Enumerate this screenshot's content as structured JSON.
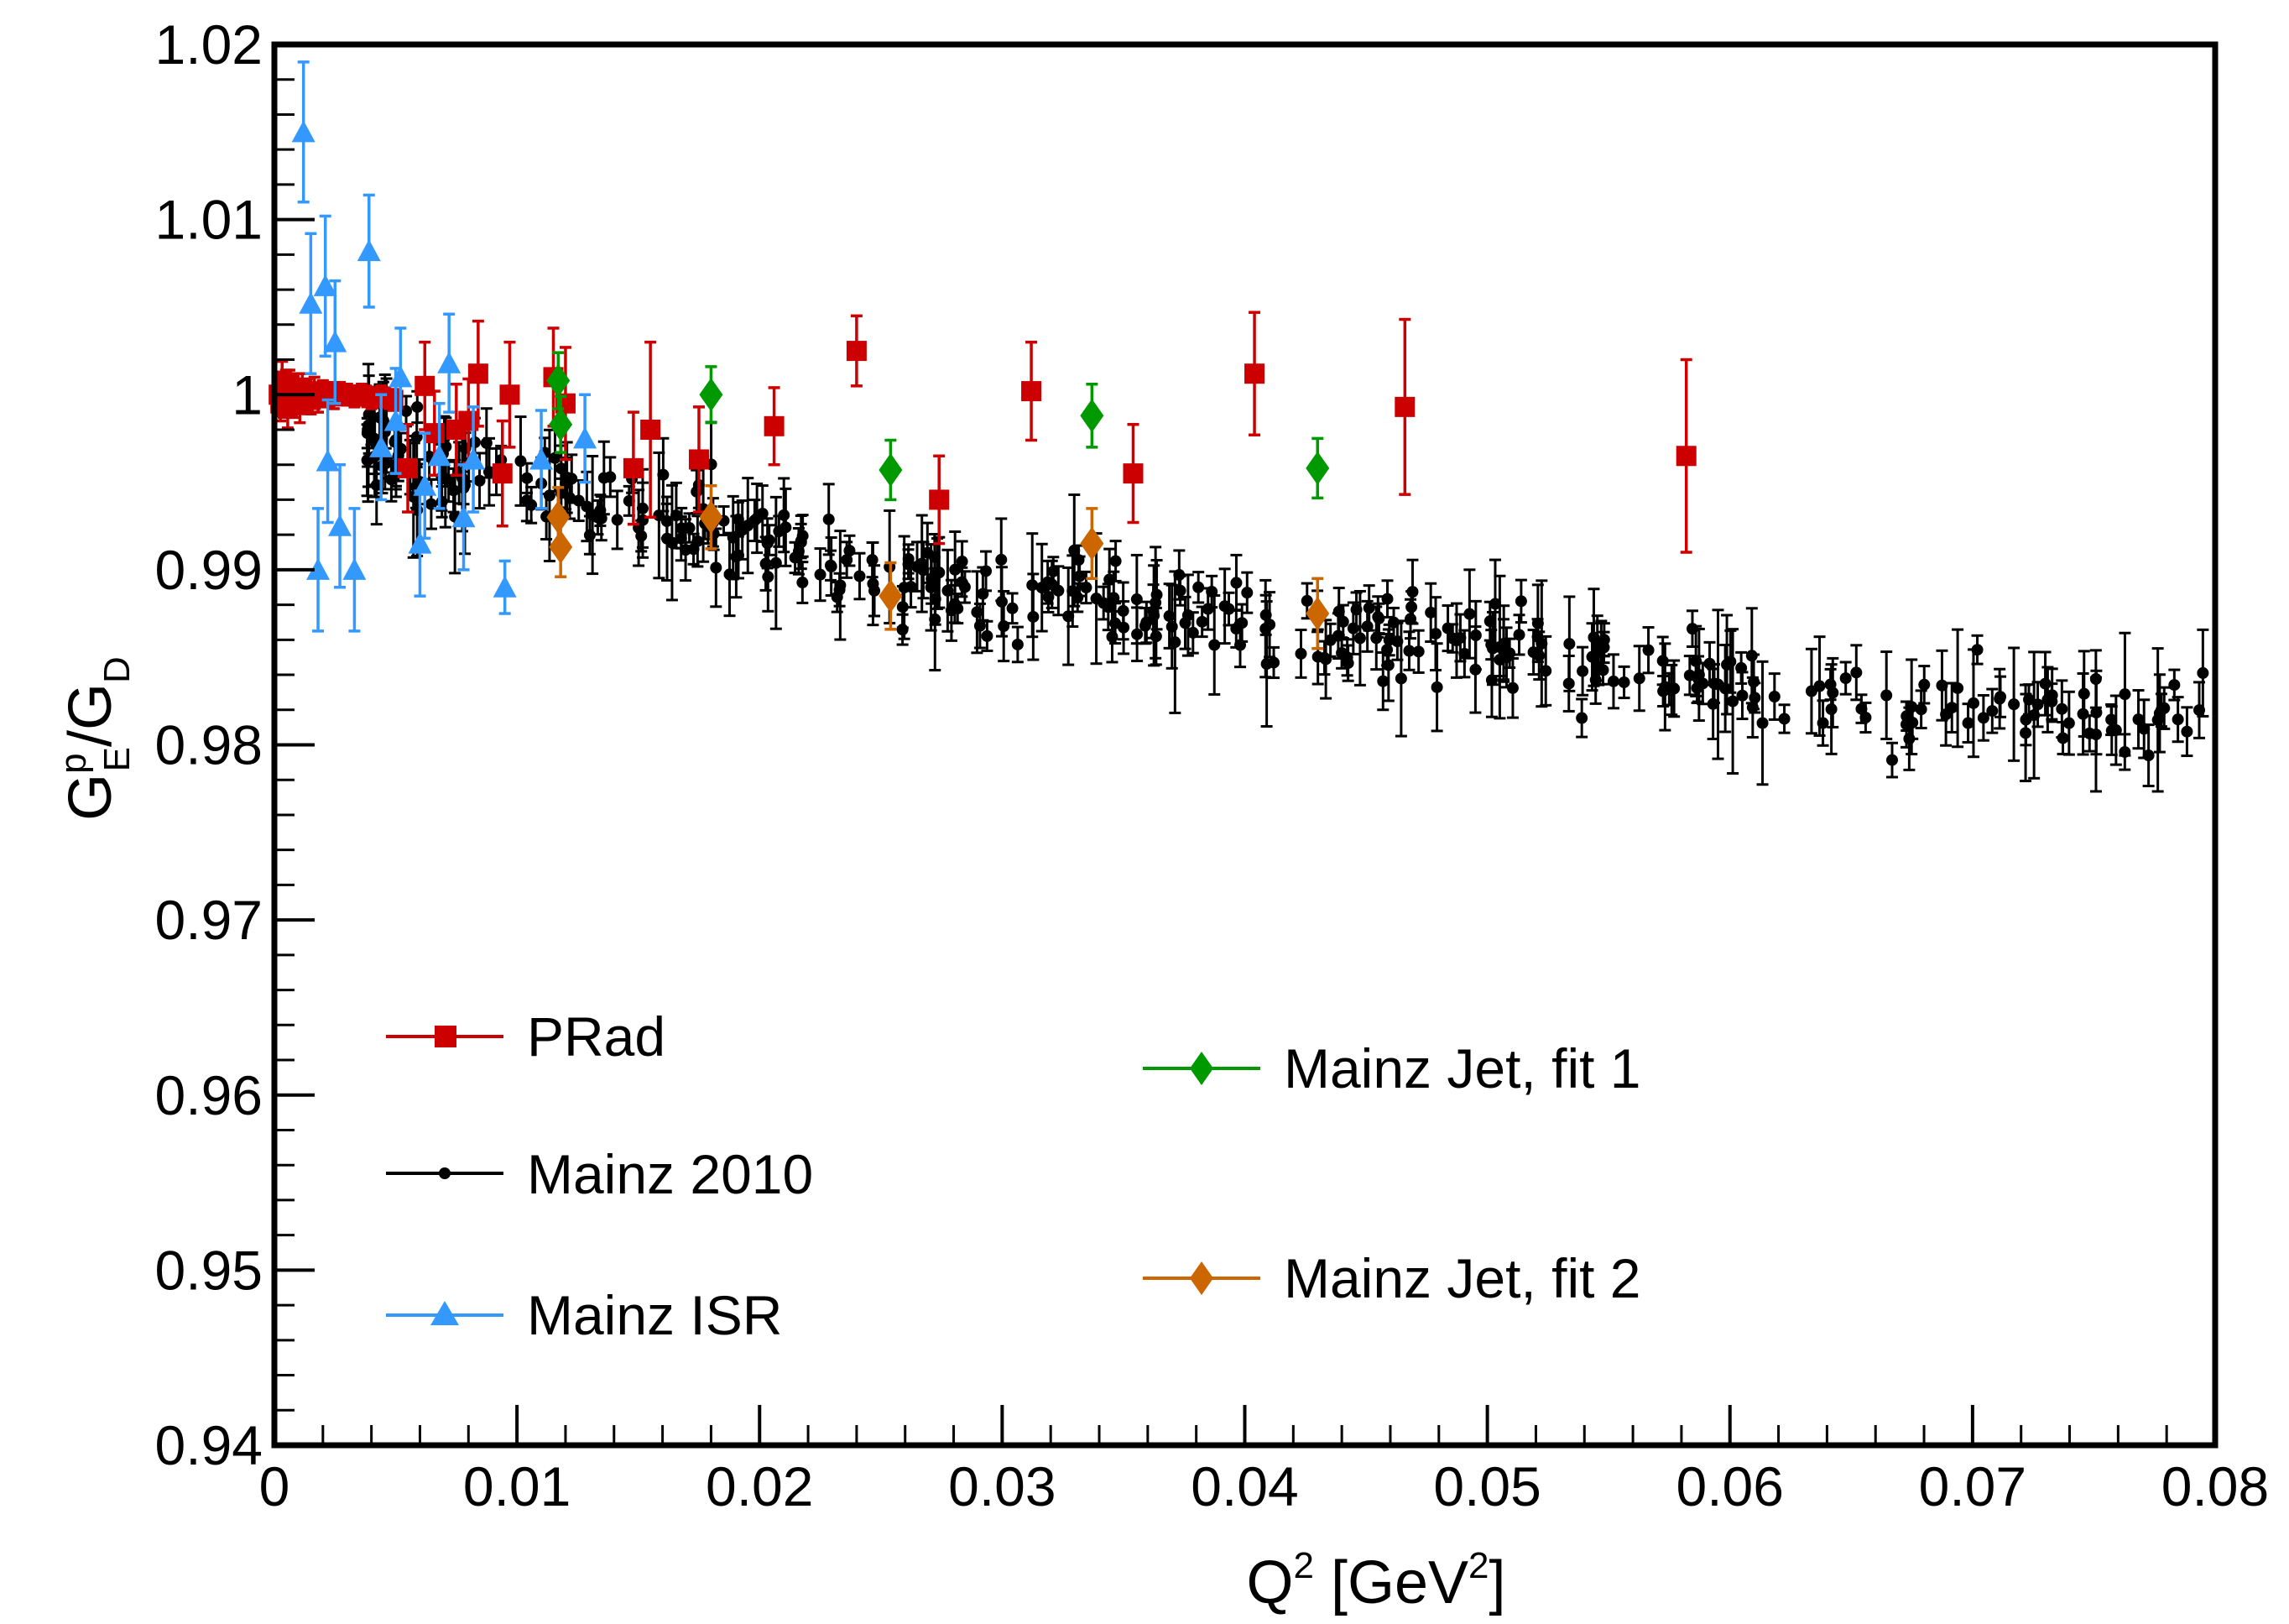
{
  "chart_data": {
    "type": "scatter",
    "title": "",
    "xlabel": "Q² [GeV²]",
    "ylabel": "G_E^p/G_D",
    "xlim": [
      0,
      0.08
    ],
    "ylim": [
      0.94,
      1.02
    ],
    "xticks": [
      "0",
      "0.01",
      "0.02",
      "0.03",
      "0.04",
      "0.05",
      "0.06",
      "0.07",
      "0.08"
    ],
    "yticks": [
      "0.94",
      "0.95",
      "0.96",
      "0.97",
      "0.98",
      "0.99",
      "1",
      "1.01",
      "1.02"
    ],
    "xlabel_parts": {
      "base": "Q",
      "sup1": "2",
      "mid": " [GeV",
      "sup2": "2",
      "end": "]"
    },
    "ylabel_parts": {
      "base": "G",
      "sup": "p",
      "sub": "E",
      "slash": "/G",
      "sub2": "D"
    },
    "legend": [
      {
        "name": "PRad",
        "color": "#cc0000",
        "marker": "square"
      },
      {
        "name": "Mainz 2010",
        "color": "#000000",
        "marker": "dot"
      },
      {
        "name": "Mainz ISR",
        "color": "#3399ff",
        "marker": "triangle"
      },
      {
        "name": "Mainz Jet, fit 1",
        "color": "#009900",
        "marker": "diamond"
      },
      {
        "name": "Mainz Jet, fit 2",
        "color": "#cc6600",
        "marker": "diamond"
      }
    ],
    "series": [
      {
        "name": "PRad",
        "color": "#cc0000",
        "marker": "square",
        "points": [
          [
            0.00018,
            1.0,
            0.0012
          ],
          [
            0.00025,
            0.9995,
            0.001
          ],
          [
            0.00032,
            1.0008,
            0.0011
          ],
          [
            0.0004,
            0.9998,
            0.0009
          ],
          [
            0.00048,
            1.0004,
            0.001
          ],
          [
            0.00055,
            0.9992,
            0.0011
          ],
          [
            0.00062,
            1.0006,
            0.0008
          ],
          [
            0.0007,
            0.9999,
            0.0009
          ],
          [
            0.00078,
            1.0002,
            0.001
          ],
          [
            0.00086,
            0.9996,
            0.0009
          ],
          [
            0.00094,
            1.0001,
            0.0008
          ],
          [
            0.00105,
            0.9994,
            0.001
          ],
          [
            0.00115,
            1.0003,
            0.0009
          ],
          [
            0.00125,
            0.9999,
            0.0008
          ],
          [
            0.00138,
            1.0,
            0.0009
          ],
          [
            0.0015,
            0.9997,
            0.0008
          ],
          [
            0.00165,
            1.0002,
            0.0008
          ],
          [
            0.0018,
            0.9998,
            0.0008
          ],
          [
            0.002,
            1.0001,
            0.0007
          ],
          [
            0.0022,
            1.0,
            0.0007
          ],
          [
            0.00245,
            0.9999,
            0.0007
          ],
          [
            0.0027,
            1.0001,
            0.0006
          ],
          [
            0.003,
            1.0,
            0.0006
          ],
          [
            0.0033,
            0.9999,
            0.0006
          ],
          [
            0.0036,
            1.0,
            0.0006
          ],
          [
            0.004,
            0.9998,
            0.0006
          ],
          [
            0.0044,
            0.9999,
            0.0006
          ],
          [
            0.0049,
            0.9997,
            0.0006
          ],
          [
            0.0055,
            0.9958,
            0.0025
          ],
          [
            0.0062,
            1.0005,
            0.0025
          ],
          [
            0.0066,
            0.9978,
            0.0024
          ],
          [
            0.0075,
            0.998,
            0.0026
          ],
          [
            0.008,
            0.9985,
            0.0024
          ],
          [
            0.0084,
            1.0012,
            0.003
          ],
          [
            0.0094,
            0.9955,
            0.003
          ],
          [
            0.0097,
            1.0,
            0.003
          ],
          [
            0.0115,
            1.001,
            0.0028
          ],
          [
            0.012,
            0.9995,
            0.0032
          ],
          [
            0.0148,
            0.9958,
            0.0032
          ],
          [
            0.0155,
            0.998,
            0.005
          ],
          [
            0.0175,
            0.9963,
            0.003
          ],
          [
            0.0206,
            0.9982,
            0.0022
          ],
          [
            0.024,
            1.0025,
            0.002
          ],
          [
            0.0274,
            0.994,
            0.0025
          ],
          [
            0.0312,
            1.0002,
            0.0028
          ],
          [
            0.0354,
            0.9955,
            0.0028
          ],
          [
            0.0404,
            1.0012,
            0.0035
          ],
          [
            0.0466,
            0.9993,
            0.005
          ],
          [
            0.0582,
            0.9965,
            0.0055
          ]
        ]
      },
      {
        "name": "Mainz ISR",
        "color": "#3399ff",
        "marker": "triangle",
        "points": [
          [
            0.0012,
            1.015,
            0.004
          ],
          [
            0.0015,
            1.0052,
            0.004
          ],
          [
            0.0018,
            0.99,
            0.0035
          ],
          [
            0.0021,
            1.0062,
            0.004
          ],
          [
            0.0022,
            0.9962,
            0.0035
          ],
          [
            0.0025,
            1.003,
            0.0035
          ],
          [
            0.0027,
            0.9925,
            0.0035
          ],
          [
            0.0033,
            0.99,
            0.0035
          ],
          [
            0.0039,
            1.0082,
            0.0032
          ],
          [
            0.0044,
            0.997,
            0.003
          ],
          [
            0.005,
            0.9985,
            0.003
          ],
          [
            0.0052,
            1.001,
            0.0028
          ],
          [
            0.006,
            0.9915,
            0.003
          ],
          [
            0.0062,
            0.9948,
            0.003
          ],
          [
            0.0068,
            0.9965,
            0.003
          ],
          [
            0.0072,
            1.0018,
            0.0028
          ],
          [
            0.0078,
            0.993,
            0.003
          ],
          [
            0.0082,
            0.9963,
            0.003
          ],
          [
            0.0095,
            0.989,
            0.0015
          ],
          [
            0.011,
            0.9963,
            0.0028
          ],
          [
            0.0128,
            0.9975,
            0.0025
          ]
        ]
      },
      {
        "name": "Mainz Jet, fit 1",
        "color": "#009900",
        "marker": "diamond",
        "points": [
          [
            0.0117,
            1.0008,
            0.0016
          ],
          [
            0.0118,
            0.9983,
            0.0016
          ],
          [
            0.018,
            1.0,
            0.0016
          ],
          [
            0.0254,
            0.9957,
            0.0017
          ],
          [
            0.0337,
            0.9988,
            0.0018
          ],
          [
            0.043,
            0.9958,
            0.0017
          ]
        ]
      },
      {
        "name": "Mainz Jet, fit 2",
        "color": "#cc6600",
        "marker": "diamond",
        "points": [
          [
            0.0117,
            0.993,
            0.0017
          ],
          [
            0.0118,
            0.9913,
            0.0017
          ],
          [
            0.018,
            0.993,
            0.0018
          ],
          [
            0.0254,
            0.9885,
            0.0019
          ],
          [
            0.0337,
            0.9915,
            0.002
          ],
          [
            0.043,
            0.9875,
            0.002
          ]
        ]
      }
    ],
    "mainz2010": {
      "name": "Mainz 2010",
      "color": "#000000",
      "marker": "dot",
      "description_generated": true,
      "count": 420,
      "x_range": [
        0.0038,
        0.08
      ],
      "trend": [
        [
          0.004,
          0.9972
        ],
        [
          0.01,
          0.9945
        ],
        [
          0.02,
          0.9915
        ],
        [
          0.03,
          0.9885
        ],
        [
          0.04,
          0.987
        ],
        [
          0.05,
          0.9852
        ],
        [
          0.06,
          0.9835
        ],
        [
          0.07,
          0.9818
        ],
        [
          0.08,
          0.9812
        ]
      ],
      "spread": 0.0028,
      "err_range": [
        0.0008,
        0.0045
      ],
      "seed": 12345
    }
  }
}
